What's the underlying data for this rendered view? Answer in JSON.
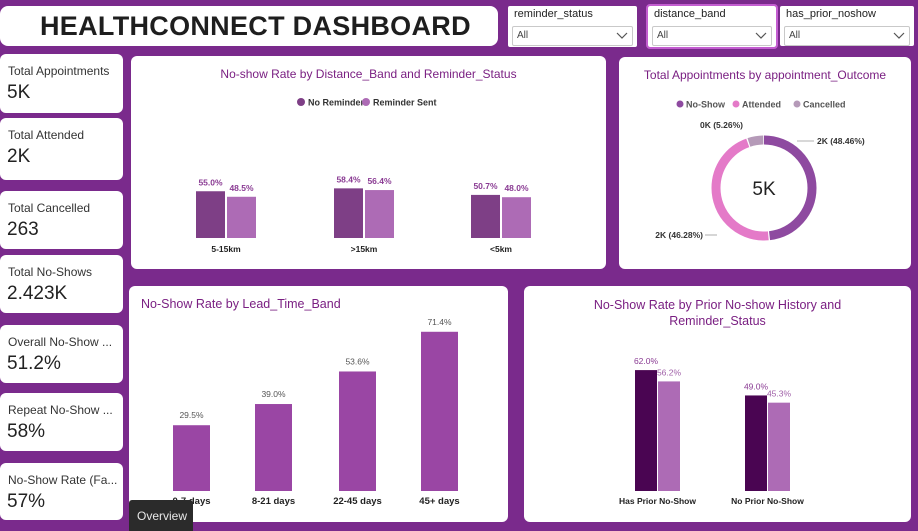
{
  "header": {
    "title": "HEALTHCONNECT DASHBOARD"
  },
  "slicers": [
    {
      "label": "reminder_status",
      "value": "All"
    },
    {
      "label": "distance_band",
      "value": "All"
    },
    {
      "label": "has_prior_noshow",
      "value": "All"
    }
  ],
  "kpis": [
    {
      "label": "Total Appointments",
      "value": "5K"
    },
    {
      "label": "Total Attended",
      "value": "2K"
    },
    {
      "label": "Total Cancelled",
      "value": "263"
    },
    {
      "label": "Total No-Shows",
      "value": "2.423K"
    },
    {
      "label": "Overall No-Show ...",
      "value": "51.2%"
    },
    {
      "label": "Repeat No-Show ...",
      "value": "58%"
    },
    {
      "label": "No-Show Rate (Fa...",
      "value": "57%"
    }
  ],
  "page_tab": {
    "label": "Overview"
  },
  "colors": {
    "background": "#7a2a8c",
    "no_reminder": "#7e3f86",
    "reminder_sent": "#ad6bb5",
    "lead_time": "#9a46a4",
    "has_prior_dark": "#4a0552",
    "no_show": "#8e4aa0",
    "attended": "#e47ac8",
    "cancelled": "#b59ab8",
    "title_purple": "#7a1f82"
  },
  "chart_data": [
    {
      "id": "distance",
      "type": "bar",
      "title": "No-show Rate by Distance_Band and Reminder_Status",
      "categories": [
        "5-15km",
        ">15km",
        "<5km"
      ],
      "series": [
        {
          "name": "No Reminder",
          "values": [
            55.0,
            58.4,
            50.7
          ],
          "labels": [
            "55.0%",
            "58.4%",
            "50.7%"
          ],
          "color": "#7e3f86"
        },
        {
          "name": "Reminder Sent",
          "values": [
            48.5,
            56.4,
            48.0
          ],
          "labels": [
            "48.5%",
            "56.4%",
            "48.0%"
          ],
          "color": "#ad6bb5"
        }
      ],
      "legend": "top-center"
    },
    {
      "id": "outcome",
      "type": "pie",
      "title": "Total Appointments by appointment_Outcome",
      "center_label": "5K",
      "slices": [
        {
          "name": "No-Show",
          "share": 48.46,
          "label": "2K (48.46%)",
          "color": "#8e4aa0"
        },
        {
          "name": "Attended",
          "share": 46.28,
          "label": "2K (46.28%)",
          "color": "#e47ac8"
        },
        {
          "name": "Cancelled",
          "share": 5.26,
          "label": "0K (5.26%)",
          "color": "#b59ab8"
        }
      ],
      "legend": "top-center"
    },
    {
      "id": "leadtime",
      "type": "bar",
      "title": "No-Show Rate by Lead_Time_Band",
      "categories": [
        "0-7 days",
        "8-21 days",
        "22-45 days",
        "45+ days"
      ],
      "values": [
        29.5,
        39.0,
        53.6,
        71.4
      ],
      "labels": [
        "29.5%",
        "39.0%",
        "53.6%",
        "71.4%"
      ]
    },
    {
      "id": "prior",
      "type": "bar",
      "title": "No-Show Rate by Prior No-show History and Reminder_Status",
      "categories": [
        "Has Prior No-Show",
        "No Prior No-Show"
      ],
      "series": [
        {
          "values": [
            62.0,
            49.0
          ],
          "labels": [
            "62.0%",
            "49.0%"
          ],
          "color": "#4a0552"
        },
        {
          "values": [
            56.2,
            45.3
          ],
          "labels": [
            "56.2%",
            "45.3%"
          ],
          "color": "#ad6bb5"
        }
      ]
    }
  ]
}
